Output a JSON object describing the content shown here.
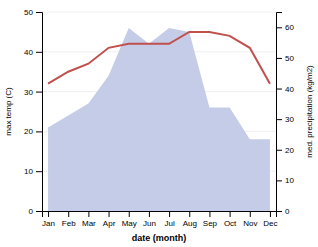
{
  "chart_data": {
    "type": "line",
    "categories": [
      "Jan",
      "Feb",
      "Mar",
      "Apr",
      "May",
      "Jun",
      "Jul",
      "Aug",
      "Sep",
      "Oct",
      "Nov",
      "Dec"
    ],
    "series": [
      {
        "type": "area",
        "color": "#c5cce8",
        "values": [
          21,
          24,
          27,
          34,
          46,
          42,
          46,
          45,
          26,
          26,
          18,
          18
        ]
      },
      {
        "type": "line",
        "color": "#c0504d",
        "values": [
          32,
          35,
          37,
          41,
          42,
          42,
          42,
          45,
          45,
          44,
          41,
          32
        ]
      }
    ],
    "xlabel": "date (month)",
    "ylabel": "max temp (C)",
    "y2label": "med. precipitation (kg/m2)",
    "ylim": [
      0,
      50
    ],
    "yticks": [
      0,
      10,
      20,
      30,
      40,
      50
    ],
    "y2lim": [
      0,
      65
    ],
    "y2ticks": [
      0,
      10,
      20,
      30,
      40,
      50,
      60
    ],
    "grid": true
  }
}
